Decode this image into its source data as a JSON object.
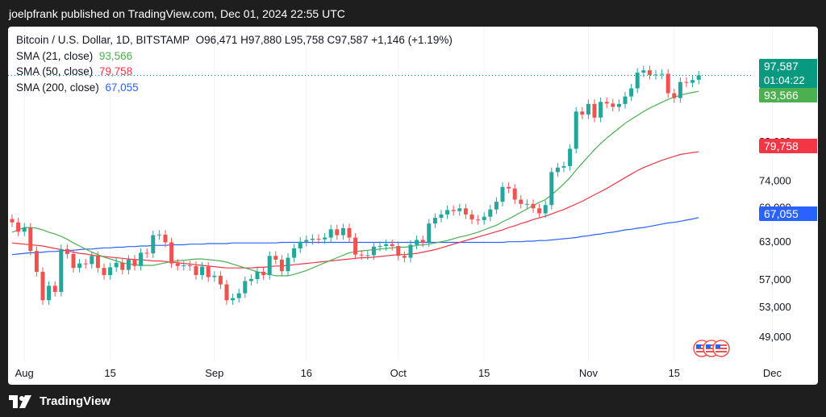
{
  "header": {
    "text": "joelpfrank published on TradingView.com, Dec 01, 2024 22:55 UTC"
  },
  "footer": {
    "brand": "TradingView"
  },
  "legend": {
    "symbol": "Bitcoin / U.S. Dollar, 1D, BITSTAMP",
    "ohlc": "O96,471  H97,880  L95,758  C97,587  +1,146 (+1.19%)",
    "sma21_label": "SMA (21, close)",
    "sma21_value": "93,566",
    "sma50_label": "SMA (50, close)",
    "sma50_value": "79,758",
    "sma200_label": "SMA (200, close)",
    "sma200_value": "67,055"
  },
  "tags": {
    "price": "97,587",
    "countdown": "01:04:22",
    "sma21": "93,566",
    "sma50": "79,758",
    "sma200": "67,055"
  },
  "colors": {
    "up": "#26a69a",
    "down": "#ef5350",
    "sma21": "#4caf50",
    "sma50": "#f23645",
    "sma200": "#2962ff",
    "price_line": "#089981"
  },
  "chart_data": {
    "type": "candlestick",
    "instrument": "Bitcoin / U.S. Dollar",
    "interval": "1D",
    "exchange": "BITSTAMP",
    "price_scale": "log",
    "y_ticks": [
      100000,
      82000,
      74000,
      69000,
      63000,
      57000,
      53000,
      49000
    ],
    "y_tick_labels": [
      "100,000",
      "82,000",
      "74,000",
      "69,000",
      "63,000",
      "57,000",
      "53,000",
      "49,000"
    ],
    "x_ticks": [
      {
        "label": "Aug",
        "date": "2024-08-01"
      },
      {
        "label": "15",
        "date": "2024-08-15"
      },
      {
        "label": "Sep",
        "date": "2024-09-01"
      },
      {
        "label": "16",
        "date": "2024-09-16"
      },
      {
        "label": "Oct",
        "date": "2024-10-01"
      },
      {
        "label": "15",
        "date": "2024-10-15"
      },
      {
        "label": "Nov",
        "date": "2024-11-01"
      },
      {
        "label": "15",
        "date": "2024-11-15"
      },
      {
        "label": "Dec",
        "date": "2024-12-01"
      }
    ],
    "first_date": "2024-07-30",
    "last_price": 97587,
    "close": [
      66200,
      64600,
      65300,
      61400,
      58100,
      53900,
      56000,
      55100,
      61700,
      60900,
      58700,
      59400,
      59300,
      60600,
      58700,
      57600,
      58800,
      59500,
      58400,
      60000,
      59000,
      61100,
      61000,
      64000,
      64100,
      62800,
      59400,
      59000,
      59100,
      59000,
      57600,
      58900,
      57300,
      57500,
      56200,
      53900,
      54200,
      54900,
      56700,
      57000,
      58100,
      57600,
      60600,
      60000,
      58200,
      60300,
      61800,
      62900,
      63200,
      63400,
      63300,
      63600,
      65000,
      64000,
      65200,
      63600,
      60800,
      60700,
      60700,
      62100,
      62200,
      62500,
      62200,
      60600,
      60300,
      62400,
      63200,
      62800,
      66000,
      67000,
      67600,
      68400,
      68200,
      68700,
      67600,
      66700,
      66600,
      67200,
      68500,
      69900,
      72700,
      72400,
      70300,
      69500,
      69500,
      68700,
      67800,
      69300,
      75600,
      76500,
      76800,
      80400,
      88700,
      88000,
      90500,
      87300,
      91000,
      90600,
      89800,
      90500,
      92300,
      94300,
      98300,
      98900,
      97700,
      97800,
      98000,
      93100,
      91900,
      95900,
      95700,
      96400,
      97587
    ],
    "open": [
      66800,
      66200,
      64600,
      65300,
      61400,
      58100,
      53900,
      56000,
      55100,
      61700,
      60900,
      58700,
      59400,
      59300,
      60600,
      58700,
      57600,
      58800,
      59500,
      58400,
      60000,
      59000,
      61100,
      61000,
      64000,
      64100,
      62800,
      59400,
      59000,
      59100,
      59000,
      57600,
      58900,
      57300,
      57500,
      56200,
      53900,
      54200,
      54900,
      56700,
      57000,
      58100,
      57600,
      60600,
      60000,
      58200,
      60300,
      61800,
      62900,
      63200,
      63400,
      63300,
      63600,
      65000,
      64000,
      65200,
      63600,
      60800,
      60700,
      60700,
      62100,
      62200,
      62500,
      62200,
      60600,
      60300,
      62400,
      63200,
      62800,
      66000,
      67000,
      67600,
      68400,
      68200,
      68700,
      67600,
      66700,
      66600,
      67200,
      68500,
      69900,
      72700,
      72400,
      70300,
      69500,
      69500,
      68700,
      67800,
      69300,
      75600,
      76500,
      76800,
      80400,
      88700,
      88000,
      90500,
      87300,
      91000,
      90600,
      89800,
      90500,
      92300,
      94300,
      98300,
      98900,
      97700,
      97800,
      98000,
      93100,
      91900,
      95900,
      95700,
      96471
    ],
    "sma21": [
      64500,
      64900,
      65300,
      65300,
      65200,
      64900,
      64500,
      64200,
      63800,
      63300,
      62700,
      62200,
      61700,
      61200,
      60800,
      60400,
      60100,
      59800,
      59500,
      59300,
      59200,
      59100,
      59100,
      59100,
      59300,
      59500,
      59700,
      59800,
      59900,
      60000,
      60100,
      60100,
      60000,
      59900,
      59800,
      59600,
      59300,
      59000,
      58700,
      58400,
      58100,
      57900,
      57700,
      57500,
      57500,
      57500,
      57700,
      58000,
      58300,
      58700,
      59100,
      59500,
      59900,
      60300,
      60700,
      61100,
      61300,
      61400,
      61500,
      61600,
      61700,
      61800,
      61900,
      62000,
      62000,
      62100,
      62300,
      62400,
      62500,
      62700,
      62900,
      63100,
      63400,
      63700,
      63900,
      64200,
      64500,
      64900,
      65300,
      65700,
      66300,
      66800,
      67400,
      68000,
      68600,
      69200,
      69800,
      70300,
      71200,
      72200,
      73300,
      74500,
      76000,
      77400,
      78800,
      80200,
      81500,
      82700,
      83800,
      84900,
      86000,
      86900,
      87800,
      88700,
      89500,
      90200,
      90900,
      91600,
      92100,
      92600,
      93000,
      93300,
      93566
    ],
    "sma50": [
      62700,
      62600,
      62500,
      62400,
      62300,
      62200,
      62000,
      61800,
      61600,
      61400,
      61200,
      61000,
      60900,
      60700,
      60600,
      60500,
      60400,
      60300,
      60200,
      60100,
      60000,
      60000,
      59900,
      59800,
      59800,
      59700,
      59600,
      59500,
      59400,
      59300,
      59200,
      59100,
      59000,
      58900,
      58800,
      58700,
      58700,
      58700,
      58700,
      58700,
      58800,
      58800,
      58900,
      59000,
      59000,
      59100,
      59200,
      59300,
      59400,
      59500,
      59600,
      59700,
      59800,
      59900,
      60000,
      60100,
      60200,
      60300,
      60300,
      60400,
      60500,
      60600,
      60700,
      60800,
      60800,
      60900,
      61000,
      61200,
      61400,
      61600,
      61900,
      62200,
      62500,
      62800,
      63100,
      63400,
      63700,
      64000,
      64300,
      64600,
      64900,
      65300,
      65600,
      66000,
      66300,
      66700,
      67000,
      67300,
      67700,
      68100,
      68500,
      69000,
      69500,
      70000,
      70600,
      71200,
      71800,
      72400,
      73100,
      73800,
      74500,
      75200,
      75900,
      76500,
      77000,
      77500,
      78000,
      78400,
      78800,
      79200,
      79400,
      79600,
      79758
    ],
    "sma200": [
      60800,
      60900,
      61000,
      61100,
      61100,
      61200,
      61300,
      61300,
      61400,
      61500,
      61500,
      61600,
      61700,
      61700,
      61800,
      61900,
      61900,
      62000,
      62000,
      62100,
      62100,
      62200,
      62200,
      62300,
      62300,
      62300,
      62400,
      62400,
      62400,
      62500,
      62500,
      62500,
      62600,
      62600,
      62600,
      62600,
      62700,
      62700,
      62700,
      62700,
      62700,
      62700,
      62700,
      62700,
      62800,
      62800,
      62800,
      62800,
      62800,
      62800,
      62800,
      62800,
      62800,
      62800,
      62800,
      62800,
      62800,
      62800,
      62800,
      62800,
      62800,
      62800,
      62800,
      62800,
      62800,
      62800,
      62800,
      62800,
      62800,
      62800,
      62800,
      62800,
      62800,
      62800,
      62800,
      62800,
      62800,
      62800,
      62800,
      62800,
      62800,
      62900,
      62900,
      62900,
      63000,
      63000,
      63100,
      63100,
      63200,
      63300,
      63400,
      63500,
      63600,
      63800,
      63900,
      64100,
      64200,
      64400,
      64500,
      64700,
      64900,
      65000,
      65200,
      65300,
      65500,
      65700,
      65900,
      66100,
      66200,
      66400,
      66600,
      66800,
      67055
    ]
  }
}
